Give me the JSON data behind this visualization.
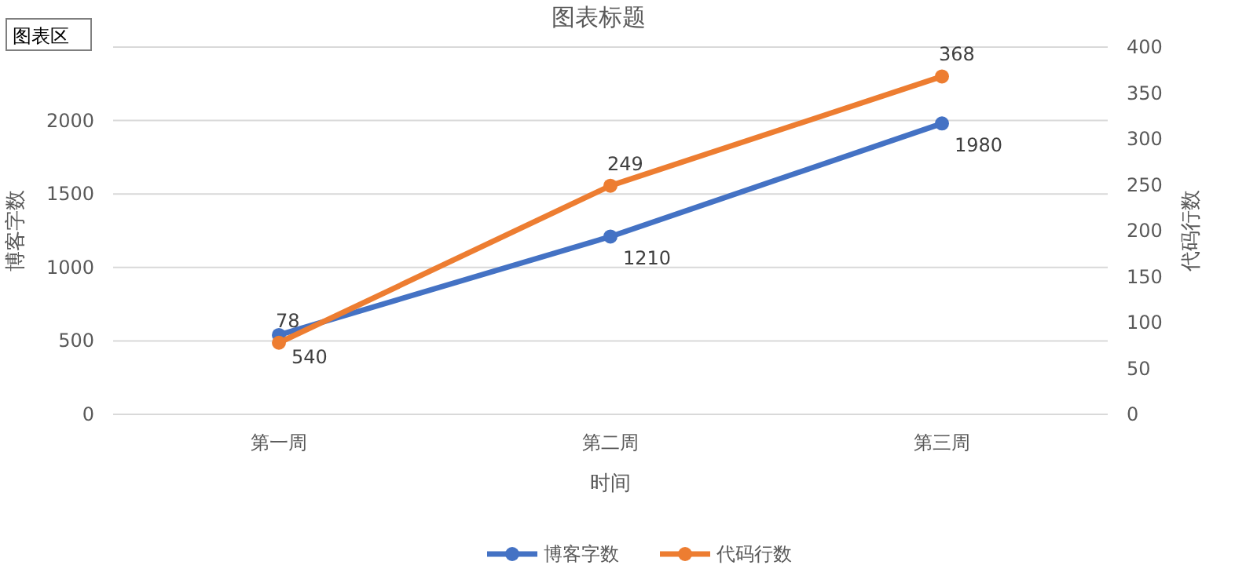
{
  "chart_data": {
    "type": "line",
    "title": "图表标题",
    "xlabel": "时间",
    "ylabel": "博客字数",
    "y2label": "代码行数",
    "categories": [
      "第一周",
      "第二周",
      "第三周"
    ],
    "series": [
      {
        "name": "博客字数",
        "color": "#4472c4",
        "values": [
          540,
          1210,
          1980
        ]
      },
      {
        "name": "代码行数",
        "color": "#ed7d31",
        "values": [
          78,
          249,
          368
        ],
        "axis": "y2"
      }
    ],
    "ylim": [
      0,
      2500
    ],
    "yticks": [
      0,
      500,
      1000,
      1500,
      2000
    ],
    "y2lim": [
      0,
      400
    ],
    "y2ticks": [
      0,
      50,
      100,
      150,
      200,
      250,
      300,
      350,
      400
    ],
    "grid": "y",
    "legend": "bottom",
    "marker": "circle",
    "data_labels": true,
    "annotations": [
      "图表区"
    ]
  }
}
